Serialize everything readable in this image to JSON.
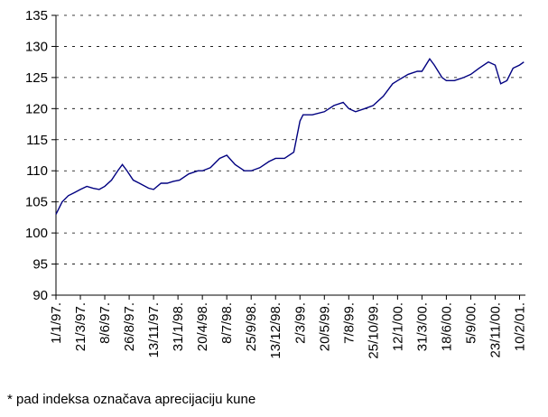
{
  "chart_data": {
    "type": "line",
    "x": [
      0,
      20,
      40,
      60,
      79,
      100,
      120,
      140,
      158,
      180,
      200,
      215,
      230,
      250,
      270,
      300,
      316,
      340,
      360,
      380,
      400,
      430,
      460,
      474,
      500,
      530,
      553,
      580,
      610,
      632,
      660,
      690,
      711,
      740,
      770,
      790,
      800,
      830,
      869,
      900,
      930,
      948,
      970,
      1000,
      1027,
      1060,
      1090,
      1106,
      1140,
      1170,
      1185,
      1210,
      1225,
      1250,
      1264,
      1290,
      1320,
      1343,
      1370,
      1400,
      1422,
      1440,
      1460,
      1480,
      1501,
      1515
    ],
    "values": [
      103,
      105,
      106,
      106.5,
      107,
      107.5,
      107.2,
      107,
      107.5,
      108.5,
      110,
      111,
      110,
      108.5,
      108,
      107.2,
      107,
      108,
      108,
      108.3,
      108.5,
      109.5,
      110,
      110,
      110.5,
      112,
      112.5,
      111,
      110,
      110,
      110.5,
      111.5,
      112,
      112,
      113,
      118,
      119,
      119,
      119.5,
      120.5,
      121,
      120,
      119.5,
      120,
      120.5,
      122,
      124,
      124.5,
      125.5,
      126,
      126,
      128,
      127,
      125,
      124.5,
      124.5,
      125,
      125.5,
      126.5,
      127.5,
      127,
      124,
      124.5,
      126.5,
      127,
      127.5
    ],
    "color": "#000080",
    "xlim": [
      0,
      1520
    ],
    "xticks": [
      {
        "value": 0,
        "label": "1/1/97."
      },
      {
        "value": 79,
        "label": "21/3/97."
      },
      {
        "value": 158,
        "label": "8/6/97."
      },
      {
        "value": 237,
        "label": "26/8/97."
      },
      {
        "value": 316,
        "label": "13/11/97."
      },
      {
        "value": 395,
        "label": "31/1/98."
      },
      {
        "value": 474,
        "label": "20/4/98."
      },
      {
        "value": 553,
        "label": "8/7/98."
      },
      {
        "value": 632,
        "label": "25/9/98."
      },
      {
        "value": 711,
        "label": "13/12/98."
      },
      {
        "value": 790,
        "label": "2/3/99."
      },
      {
        "value": 869,
        "label": "20/5/99."
      },
      {
        "value": 948,
        "label": "7/8/99."
      },
      {
        "value": 1027,
        "label": "25/10/99."
      },
      {
        "value": 1106,
        "label": "12/1/00."
      },
      {
        "value": 1185,
        "label": "31/3/00."
      },
      {
        "value": 1264,
        "label": "18/6/00."
      },
      {
        "value": 1343,
        "label": "5/9/00."
      },
      {
        "value": 1422,
        "label": "23/11/00."
      },
      {
        "value": 1501,
        "label": "10/2/01."
      }
    ],
    "ylim": [
      90,
      135
    ],
    "yticks": [
      90,
      95,
      100,
      105,
      110,
      115,
      120,
      125,
      130,
      135
    ],
    "grid": true,
    "note": "* pad indeksa označava aprecijaciju kune"
  }
}
